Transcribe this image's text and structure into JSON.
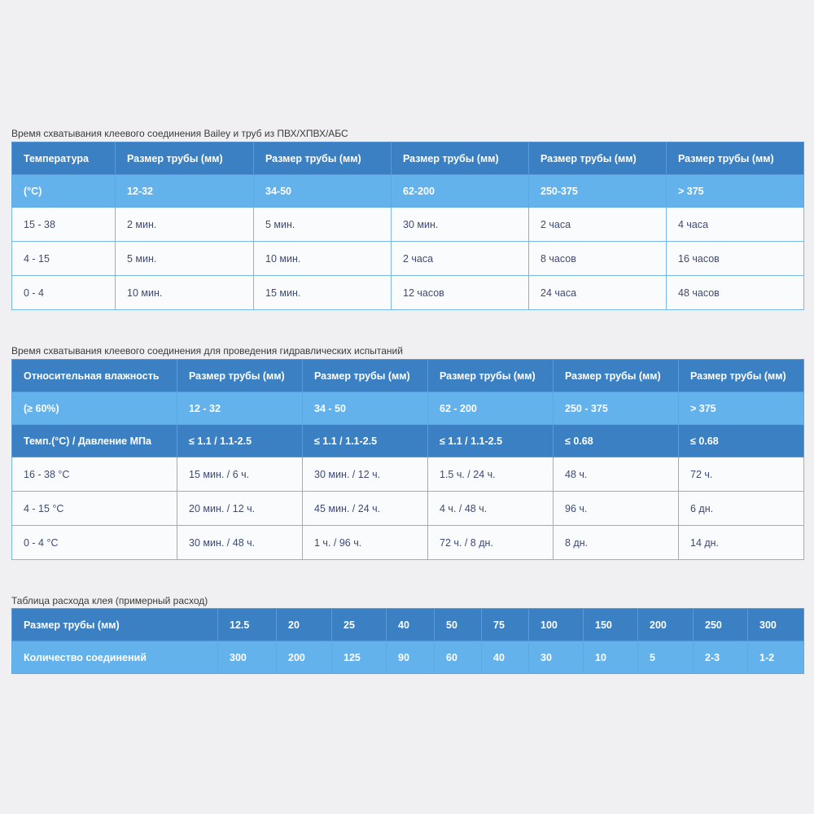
{
  "table1": {
    "caption": "Время схватывания клеевого соединения Bailey и труб из ПВХ/ХПВХ/АБС",
    "header": [
      "Температура",
      "Размер трубы (мм)",
      "Размер трубы (мм)",
      "Размер трубы (мм)",
      "Размер трубы (мм)",
      "Размер трубы (мм)"
    ],
    "subheader": [
      "(°С)",
      "12-32",
      "34-50",
      "62-200",
      "250-375",
      "> 375"
    ],
    "rows": [
      [
        "15 - 38",
        "2 мин.",
        "5 мин.",
        "30 мин.",
        "2 часа",
        "4 часа"
      ],
      [
        "4 - 15",
        "5 мин.",
        "10 мин.",
        "2 часа",
        "8 часов",
        "16 часов"
      ],
      [
        "0 - 4",
        "10 мин.",
        "15 мин.",
        "12 часов",
        "24 часа",
        "48 часов"
      ]
    ]
  },
  "table2": {
    "caption": "Время схватывания клеевого соединения для проведения гидравлических испытаний",
    "header": [
      "Относительная влажность",
      "Размер трубы (мм)",
      "Размер трубы (мм)",
      "Размер трубы (мм)",
      "Размер трубы (мм)",
      "Размер трубы (мм)"
    ],
    "subheader": [
      "(≥ 60%)",
      "12 - 32",
      "34 - 50",
      "62 - 200",
      "250 - 375",
      "> 375"
    ],
    "pressure": [
      "Темп.(°С) / Давление МПа",
      "≤ 1.1 / 1.1-2.5",
      "≤ 1.1 / 1.1-2.5",
      "≤ 1.1 / 1.1-2.5",
      "≤ 0.68",
      "≤ 0.68"
    ],
    "rows": [
      [
        "16 - 38 °С",
        "15 мин. / 6 ч.",
        "30 мин. / 12 ч.",
        "1.5 ч. / 24 ч.",
        "48 ч.",
        "72 ч."
      ],
      [
        "4 - 15 °С",
        "20 мин. / 12 ч.",
        "45 мин. / 24 ч.",
        "4 ч. / 48 ч.",
        "96 ч.",
        "6 дн."
      ],
      [
        "0 - 4 °С",
        "30 мин. / 48 ч.",
        "1 ч. / 96 ч.",
        "72 ч. / 8 дн.",
        "8 дн.",
        "14 дн."
      ]
    ]
  },
  "table3": {
    "caption": "Таблица расхода клея (примерный расход)",
    "sizes_label": "Размер трубы (мм)",
    "sizes": [
      "12.5",
      "20",
      "25",
      "40",
      "50",
      "75",
      "100",
      "150",
      "200",
      "250",
      "300"
    ],
    "joints_label": "Количество соединений",
    "joints": [
      "300",
      "200",
      "125",
      "90",
      "60",
      "40",
      "30",
      "10",
      "5",
      "2-3",
      "1-2"
    ]
  },
  "colors": {
    "header_dark": "#3c80c4",
    "header_light": "#63b2ec",
    "body_text": "#3e4a73",
    "border": "#6fb0e8"
  }
}
